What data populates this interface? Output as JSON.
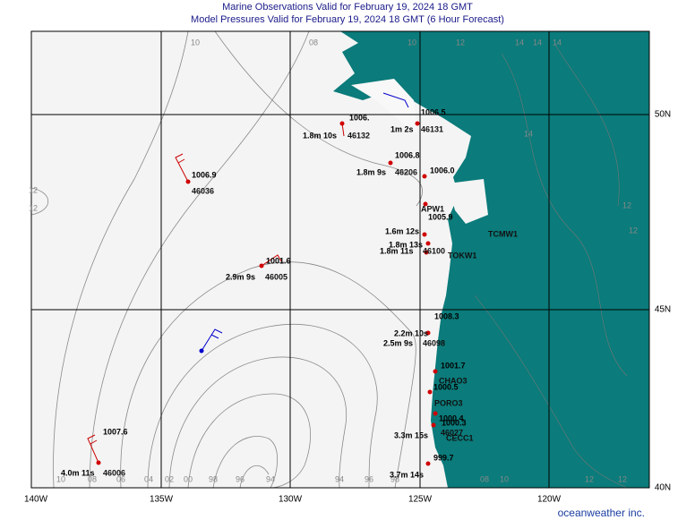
{
  "header": {
    "title": "Marine Observations Valid for February 19, 2024 18 GMT",
    "subtitle": "Model Pressures Valid for February 19, 2024 18 GMT (6 Hour Forecast)"
  },
  "map": {
    "longitude_labels": [
      "140W",
      "135W",
      "130W",
      "125W",
      "120W"
    ],
    "latitude_labels": [
      "50N",
      "45N",
      "40N"
    ],
    "isobar_labels": [
      "10",
      "08",
      "10",
      "12",
      "14",
      "14",
      "14",
      "10",
      "08",
      "06",
      "04",
      "02",
      "00",
      "98",
      "96",
      "94",
      "94",
      "96",
      "98",
      "08",
      "10",
      "12",
      "12",
      "12",
      "12",
      "14",
      "12",
      "12"
    ],
    "stations": [
      {
        "pressure": "1006.",
        "wave": "1.8m 10s",
        "id": "46132"
      },
      {
        "pressure": "1006.5",
        "wave": "1m 2s",
        "id": "46131"
      },
      {
        "pressure": "1006.9",
        "id": "46036"
      },
      {
        "pressure": "1006.8",
        "wave": "1.8m 9s",
        "id": "46206"
      },
      {
        "pressure": "1001.6",
        "wave": "2.9m 9s",
        "id": "46005"
      },
      {
        "pressure": "1006.0"
      },
      {
        "pressure": "1005.9",
        "id": "APW1"
      },
      {
        "wave": "1.6m 12s"
      },
      {
        "wave": "1.8m 13s",
        "id": "TOKW1"
      },
      {
        "wave": "1.8m 11s",
        "id": "46100"
      },
      {
        "id": "TCMW1"
      },
      {
        "pressure": "1008.3",
        "wave": "2.2m 10s",
        "id": "46098"
      },
      {
        "wave": "2.5m 9s"
      },
      {
        "pressure": "1001.7",
        "id": "CHAO3"
      },
      {
        "pressure": "1000.5",
        "id": "PORO3"
      },
      {
        "pressure": "1000.4"
      },
      {
        "pressure": "1000.3",
        "wave": "3.3m 15s",
        "id": "46027"
      },
      {
        "id": "CECC1"
      },
      {
        "pressure": "999.7",
        "wave": "3.7m 14s"
      },
      {
        "pressure": "1007.6",
        "wave": "4.0m 11s",
        "id": "46006"
      }
    ]
  },
  "footer": {
    "credit": "oceanweather inc."
  }
}
